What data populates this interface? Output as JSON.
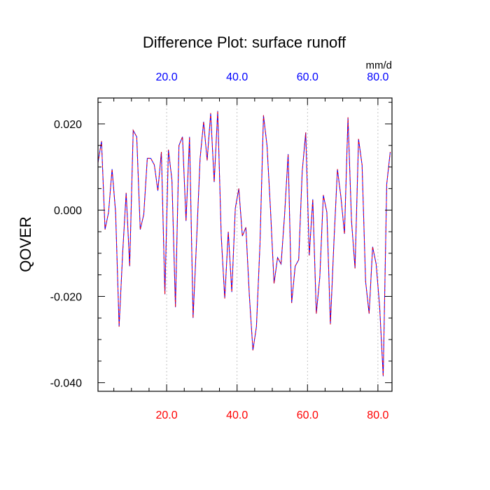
{
  "chart_data": {
    "type": "line",
    "title": "Difference Plot: surface runoff",
    "ylabel": "QOVER",
    "top_axis_units": "mm/d",
    "xlim": [
      0.5,
      84
    ],
    "ylim": [
      -0.042,
      0.026
    ],
    "grid": true,
    "x_ticks": [
      20,
      40,
      60,
      80
    ],
    "x_tick_labels_bottom": [
      "20.0",
      "40.0",
      "60.0",
      "80.0"
    ],
    "x_tick_labels_top": [
      "20.0",
      "40.0",
      "60.0",
      "80.0"
    ],
    "x_minor_ticks": [
      5,
      10,
      15,
      25,
      30,
      35,
      45,
      50,
      55,
      65,
      70,
      75
    ],
    "y_ticks": [
      -0.04,
      -0.02,
      0.0,
      0.02
    ],
    "y_tick_labels": [
      "-0.040",
      "-0.020",
      "0.000",
      "0.020"
    ],
    "y_minor_ticks": [
      -0.035,
      -0.03,
      -0.025,
      -0.015,
      -0.01,
      -0.005,
      0.005,
      0.01,
      0.015,
      0.025
    ],
    "colors": {
      "series_a": "#0000ff",
      "series_b": "#ff0000",
      "bottom_tick_labels": "#ff0000",
      "top_tick_labels": "#0000ff"
    },
    "x": [
      0.5,
      1.5,
      2.5,
      3.5,
      4.5,
      5.5,
      6.5,
      7.5,
      8.5,
      9.5,
      10.5,
      11.5,
      12.5,
      13.5,
      14.5,
      15.5,
      16.5,
      17.5,
      18.5,
      19.5,
      20.5,
      21.5,
      22.5,
      23.5,
      24.5,
      25.5,
      26.5,
      27.5,
      28.5,
      29.5,
      30.5,
      31.5,
      32.5,
      33.5,
      34.5,
      35.5,
      36.5,
      37.5,
      38.5,
      39.5,
      40.5,
      41.5,
      42.5,
      43.5,
      44.5,
      45.5,
      46.5,
      47.5,
      48.5,
      49.5,
      50.5,
      51.5,
      52.5,
      53.5,
      54.5,
      55.5,
      56.5,
      57.5,
      58.5,
      59.5,
      60.5,
      61.5,
      62.5,
      63.5,
      64.5,
      65.5,
      66.5,
      67.5,
      68.5,
      69.5,
      70.5,
      71.5,
      72.5,
      73.5,
      74.5,
      75.5,
      76.5,
      77.5,
      78.5,
      79.5,
      80.5,
      81.5,
      82.5,
      83.5
    ],
    "series": [
      {
        "values": [
          0.011,
          0.016,
          -0.0045,
          -0.0005,
          0.0095,
          -0.0005,
          -0.027,
          -0.01,
          0.004,
          -0.013,
          0.0185,
          0.017,
          -0.0045,
          -0.001,
          0.012,
          0.012,
          0.0105,
          0.0045,
          0.0135,
          -0.0195,
          0.014,
          0.007,
          -0.0225,
          0.015,
          0.017,
          -0.0025,
          0.017,
          -0.025,
          -0.007,
          0.012,
          0.0205,
          0.0115,
          0.0225,
          0.0065,
          0.023,
          -0.006,
          -0.0205,
          -0.005,
          -0.019,
          0.0005,
          0.005,
          -0.006,
          -0.004,
          -0.02,
          -0.0325,
          -0.027,
          -0.008,
          0.022,
          0.015,
          0.0,
          -0.017,
          -0.011,
          -0.0125,
          -0.001,
          0.013,
          -0.0215,
          -0.013,
          -0.0115,
          0.009,
          0.018,
          -0.0105,
          0.0025,
          -0.024,
          -0.0155,
          0.0035,
          -0.0005,
          -0.0265,
          -0.0075,
          0.0095,
          0.003,
          -0.0055,
          0.0215,
          -0.0025,
          -0.0135,
          0.0165,
          0.0105,
          -0.0165,
          -0.024,
          -0.0085,
          -0.0125,
          -0.0225,
          -0.0385,
          0.006,
          0.0135
        ]
      },
      {
        "values": [
          0.011,
          0.016,
          -0.0045,
          -0.0005,
          0.0095,
          -0.0005,
          -0.027,
          -0.01,
          0.004,
          -0.013,
          0.0185,
          0.017,
          -0.0045,
          -0.001,
          0.012,
          0.012,
          0.0105,
          0.0045,
          0.0135,
          -0.0195,
          0.014,
          0.007,
          -0.0225,
          0.015,
          0.017,
          -0.0025,
          0.017,
          -0.025,
          -0.007,
          0.012,
          0.0205,
          0.0115,
          0.0225,
          0.0065,
          0.023,
          -0.006,
          -0.0205,
          -0.005,
          -0.019,
          0.0005,
          0.005,
          -0.006,
          -0.004,
          -0.02,
          -0.0325,
          -0.027,
          -0.008,
          0.022,
          0.015,
          0.0,
          -0.017,
          -0.011,
          -0.0125,
          -0.001,
          0.013,
          -0.0215,
          -0.013,
          -0.0115,
          0.009,
          0.018,
          -0.0105,
          0.0025,
          -0.024,
          -0.0155,
          0.0035,
          -0.0005,
          -0.0265,
          -0.0075,
          0.0095,
          0.003,
          -0.0055,
          0.0215,
          -0.0025,
          -0.0135,
          0.0165,
          0.0105,
          -0.0165,
          -0.024,
          -0.0085,
          -0.0125,
          -0.0225,
          -0.0385,
          0.006,
          0.0135
        ]
      }
    ]
  }
}
